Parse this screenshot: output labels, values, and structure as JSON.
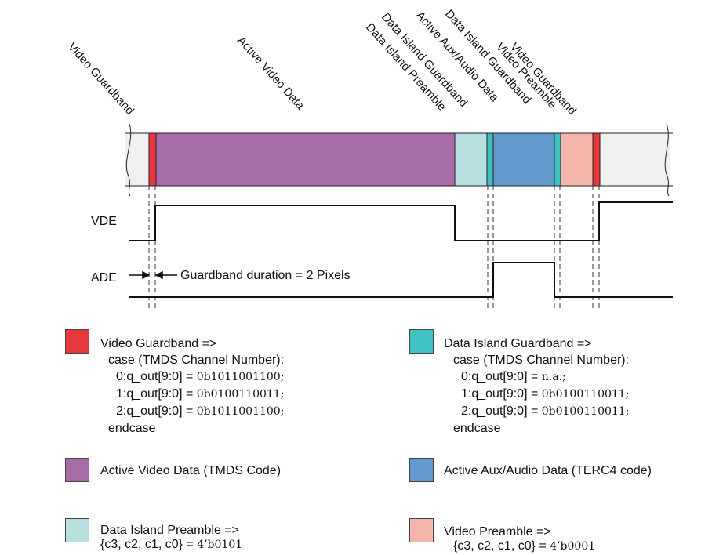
{
  "period_labels": [
    "Video Guardband",
    "Active Video Data",
    "Data Island Preamble",
    "Data Island Guardband",
    "Active Aux/Audio Data",
    "Data Island Guardband",
    "Video Preamble",
    "Video Guardband"
  ],
  "signals": {
    "vde": "VDE",
    "ade": "ADE",
    "guardband_note": "Guardband duration = 2 Pixels"
  },
  "colors": {
    "video_guardband": "#e8373d",
    "active_video": "#a66ca8",
    "data_island_preamble": "#b8dfe0",
    "data_island_guardband": "#3ec1c2",
    "active_aux": "#6499cd",
    "video_preamble": "#f4b6aa",
    "blank": "#f0f0f0"
  },
  "legend": {
    "video_guardband": {
      "title": "Video Guardband =>",
      "case_line": "case (TMDS Channel Number):",
      "rows": [
        {
          "prefix": "0:q_out[9:0] = ",
          "value": "0b1011001100;"
        },
        {
          "prefix": "1:q_out[9:0] = ",
          "value": "0b0100110011;"
        },
        {
          "prefix": "2:q_out[9:0] = ",
          "value": "0b1011001100;"
        }
      ],
      "end_line": "endcase"
    },
    "data_island_guardband": {
      "title": "Data Island Guardband =>",
      "case_line": "case (TMDS Channel Number):",
      "rows": [
        {
          "prefix": "0:q_out[9:0] = ",
          "value": "n.a.;"
        },
        {
          "prefix": "1:q_out[9:0] = ",
          "value": "0b0100110011;"
        },
        {
          "prefix": "2:q_out[9:0] = ",
          "value": "0b0100110011;"
        }
      ],
      "end_line": "endcase"
    },
    "active_video": {
      "title": "Active Video Data (TMDS Code)"
    },
    "active_aux": {
      "title": "Active Aux/Audio Data (TERC4 code)"
    },
    "data_island_preamble": {
      "title": "Data Island Preamble =>",
      "prefix": "{c3, c2, c1, c0} = ",
      "value": "4’b0101"
    },
    "video_preamble": {
      "title": "Video Preamble =>",
      "prefix": "{c3, c2, c1, c0} = ",
      "value": "4’b0001"
    }
  }
}
